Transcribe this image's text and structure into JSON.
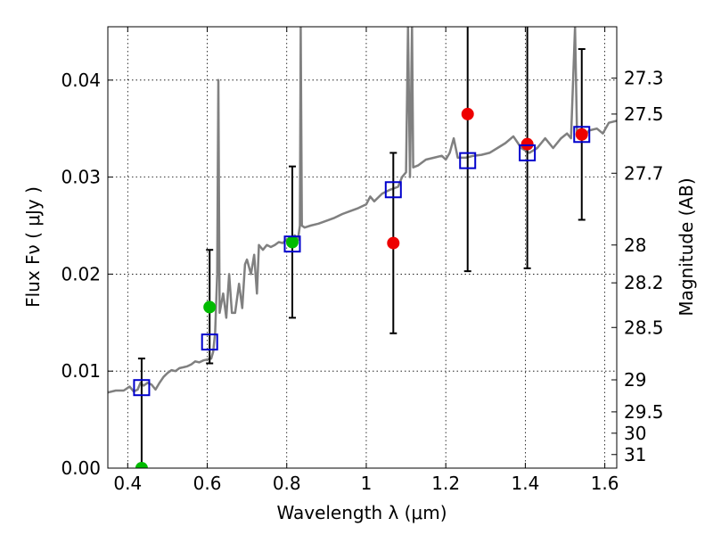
{
  "chart_data": {
    "type": "scatter",
    "xlabel": "Wavelength  λ (μm)",
    "ylabel": "Flux  Fν  ( μJy )",
    "y2label": "Magnitude (AB)",
    "xlim": [
      0.35,
      1.63
    ],
    "ylim": [
      0.0,
      0.0455
    ],
    "xticks": [
      0.4,
      0.6,
      0.8,
      1.0,
      1.2,
      1.4,
      1.6
    ],
    "xtick_labels": [
      "0.4",
      "0.6",
      "0.8",
      "1",
      "1.2",
      "1.4",
      "1.6"
    ],
    "yticks": [
      0.0,
      0.01,
      0.02,
      0.03,
      0.04
    ],
    "ytick_labels": [
      "0.00",
      "0.01",
      "0.02",
      "0.03",
      "0.04"
    ],
    "y2ticks": [
      {
        "label": "27.3",
        "flux": 0.0402
      },
      {
        "label": "27.5",
        "flux": 0.0365
      },
      {
        "label": "27.7",
        "flux": 0.0304
      },
      {
        "label": "28",
        "flux": 0.023
      },
      {
        "label": "28.2",
        "flux": 0.0191
      },
      {
        "label": "28.5",
        "flux": 0.0145
      },
      {
        "label": "29",
        "flux": 0.0091
      },
      {
        "label": "29.5",
        "flux": 0.0058
      },
      {
        "label": "30",
        "flux": 0.0036
      },
      {
        "label": "31",
        "flux": 0.0014
      }
    ],
    "grid": true,
    "colors": {
      "model": "#808080",
      "model_photometry": "#0000cc",
      "detection": "#00bb00",
      "upper_limit": "#ee0000",
      "errorbar": "#000000"
    },
    "model_spectrum": [
      [
        0.35,
        0.0078
      ],
      [
        0.37,
        0.008
      ],
      [
        0.39,
        0.008
      ],
      [
        0.405,
        0.0084
      ],
      [
        0.415,
        0.0079
      ],
      [
        0.425,
        0.0081
      ],
      [
        0.432,
        0.0088
      ],
      [
        0.44,
        0.0085
      ],
      [
        0.45,
        0.0088
      ],
      [
        0.46,
        0.0086
      ],
      [
        0.47,
        0.0081
      ],
      [
        0.48,
        0.0088
      ],
      [
        0.49,
        0.0094
      ],
      [
        0.5,
        0.0098
      ],
      [
        0.51,
        0.0101
      ],
      [
        0.52,
        0.01
      ],
      [
        0.53,
        0.0103
      ],
      [
        0.54,
        0.0104
      ],
      [
        0.55,
        0.0105
      ],
      [
        0.56,
        0.0107
      ],
      [
        0.57,
        0.011
      ],
      [
        0.58,
        0.0109
      ],
      [
        0.59,
        0.0111
      ],
      [
        0.6,
        0.0112
      ],
      [
        0.61,
        0.0113
      ],
      [
        0.615,
        0.012
      ],
      [
        0.62,
        0.014
      ],
      [
        0.625,
        0.02
      ],
      [
        0.628,
        0.04
      ],
      [
        0.631,
        0.016
      ],
      [
        0.64,
        0.018
      ],
      [
        0.648,
        0.0155
      ],
      [
        0.655,
        0.02
      ],
      [
        0.662,
        0.016
      ],
      [
        0.67,
        0.016
      ],
      [
        0.68,
        0.019
      ],
      [
        0.688,
        0.0165
      ],
      [
        0.695,
        0.021
      ],
      [
        0.7,
        0.0215
      ],
      [
        0.71,
        0.02
      ],
      [
        0.718,
        0.022
      ],
      [
        0.725,
        0.018
      ],
      [
        0.73,
        0.023
      ],
      [
        0.74,
        0.0225
      ],
      [
        0.75,
        0.023
      ],
      [
        0.76,
        0.0228
      ],
      [
        0.77,
        0.023
      ],
      [
        0.78,
        0.0233
      ],
      [
        0.79,
        0.0232
      ],
      [
        0.8,
        0.0236
      ],
      [
        0.81,
        0.0233
      ],
      [
        0.82,
        0.024
      ],
      [
        0.828,
        0.0235
      ],
      [
        0.833,
        0.025
      ],
      [
        0.835,
        0.0455
      ],
      [
        0.838,
        0.025
      ],
      [
        0.845,
        0.0248
      ],
      [
        0.86,
        0.025
      ],
      [
        0.88,
        0.0252
      ],
      [
        0.9,
        0.0255
      ],
      [
        0.92,
        0.0258
      ],
      [
        0.94,
        0.0262
      ],
      [
        0.96,
        0.0265
      ],
      [
        0.98,
        0.0268
      ],
      [
        1.0,
        0.0272
      ],
      [
        1.01,
        0.028
      ],
      [
        1.02,
        0.0275
      ],
      [
        1.04,
        0.0283
      ],
      [
        1.06,
        0.0287
      ],
      [
        1.08,
        0.029
      ],
      [
        1.09,
        0.03
      ],
      [
        1.1,
        0.0305
      ],
      [
        1.105,
        0.0455
      ],
      [
        1.11,
        0.03
      ],
      [
        1.115,
        0.0455
      ],
      [
        1.118,
        0.031
      ],
      [
        1.13,
        0.0312
      ],
      [
        1.15,
        0.0318
      ],
      [
        1.17,
        0.032
      ],
      [
        1.19,
        0.0322
      ],
      [
        1.2,
        0.0318
      ],
      [
        1.21,
        0.0325
      ],
      [
        1.22,
        0.034
      ],
      [
        1.23,
        0.032
      ],
      [
        1.25,
        0.032
      ],
      [
        1.27,
        0.0322
      ],
      [
        1.29,
        0.0323
      ],
      [
        1.31,
        0.0325
      ],
      [
        1.33,
        0.033
      ],
      [
        1.35,
        0.0335
      ],
      [
        1.37,
        0.0342
      ],
      [
        1.39,
        0.033
      ],
      [
        1.41,
        0.0325
      ],
      [
        1.43,
        0.033
      ],
      [
        1.45,
        0.034
      ],
      [
        1.47,
        0.033
      ],
      [
        1.49,
        0.034
      ],
      [
        1.505,
        0.0345
      ],
      [
        1.515,
        0.034
      ],
      [
        1.525,
        0.0455
      ],
      [
        1.53,
        0.0345
      ],
      [
        1.545,
        0.034
      ],
      [
        1.56,
        0.0348
      ],
      [
        1.58,
        0.035
      ],
      [
        1.595,
        0.0345
      ],
      [
        1.61,
        0.0356
      ],
      [
        1.63,
        0.0358
      ]
    ],
    "model_photometry": [
      {
        "x": 0.435,
        "y": 0.0083
      },
      {
        "x": 0.606,
        "y": 0.013
      },
      {
        "x": 0.814,
        "y": 0.0231
      },
      {
        "x": 1.068,
        "y": 0.0287
      },
      {
        "x": 1.255,
        "y": 0.0317
      },
      {
        "x": 1.405,
        "y": 0.0325
      },
      {
        "x": 1.542,
        "y": 0.0344
      }
    ],
    "observations": [
      {
        "x": 0.435,
        "y": 0.0,
        "yerr_low": 0.0,
        "yerr_high": 0.0113,
        "status": "detection"
      },
      {
        "x": 0.606,
        "y": 0.0166,
        "yerr_low": 0.0108,
        "yerr_high": 0.0225,
        "status": "detection"
      },
      {
        "x": 0.814,
        "y": 0.0233,
        "yerr_low": 0.0155,
        "yerr_high": 0.0311,
        "status": "detection"
      },
      {
        "x": 1.068,
        "y": 0.0232,
        "yerr_low": 0.0139,
        "yerr_high": 0.0325,
        "status": "upper_limit"
      },
      {
        "x": 1.255,
        "y": 0.0365,
        "yerr_low": 0.0203,
        "yerr_high": 0.0455,
        "status": "upper_limit"
      },
      {
        "x": 1.405,
        "y": 0.0334,
        "yerr_low": 0.0206,
        "yerr_high": 0.0455,
        "status": "upper_limit"
      },
      {
        "x": 1.542,
        "y": 0.0344,
        "yerr_low": 0.0256,
        "yerr_high": 0.0432,
        "status": "upper_limit"
      }
    ]
  }
}
